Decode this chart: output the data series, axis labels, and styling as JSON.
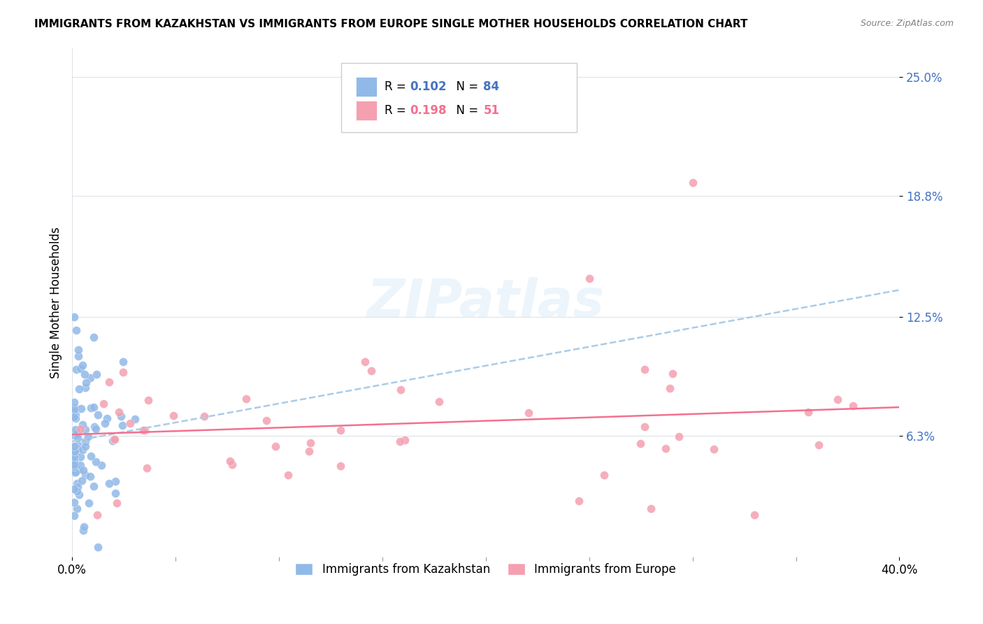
{
  "title": "IMMIGRANTS FROM KAZAKHSTAN VS IMMIGRANTS FROM EUROPE SINGLE MOTHER HOUSEHOLDS CORRELATION CHART",
  "source": "Source: ZipAtlas.com",
  "ylabel": "Single Mother Households",
  "ytick_labels": [
    "6.3%",
    "12.5%",
    "18.8%",
    "25.0%"
  ],
  "ytick_values": [
    0.063,
    0.125,
    0.188,
    0.25
  ],
  "xlim": [
    0.0,
    0.4
  ],
  "ylim": [
    0.0,
    0.265
  ],
  "watermark": "ZIPatlas",
  "color_kaz": "#91b9e8",
  "color_eur": "#f4a0b0",
  "trendline_kaz_color": "#aacce8",
  "trendline_eur_color": "#f47090",
  "legend_label_kaz": "Immigrants from Kazakhstan",
  "legend_label_eur": "Immigrants from Europe",
  "r_kaz": "0.102",
  "n_kaz": "84",
  "r_eur": "0.198",
  "n_eur": "51",
  "blue_text_color": "#4472c4",
  "pink_text_color": "#f47090",
  "grid_color": "#d0d8e0",
  "title_fontsize": 11,
  "tick_fontsize": 12,
  "source_fontsize": 9
}
